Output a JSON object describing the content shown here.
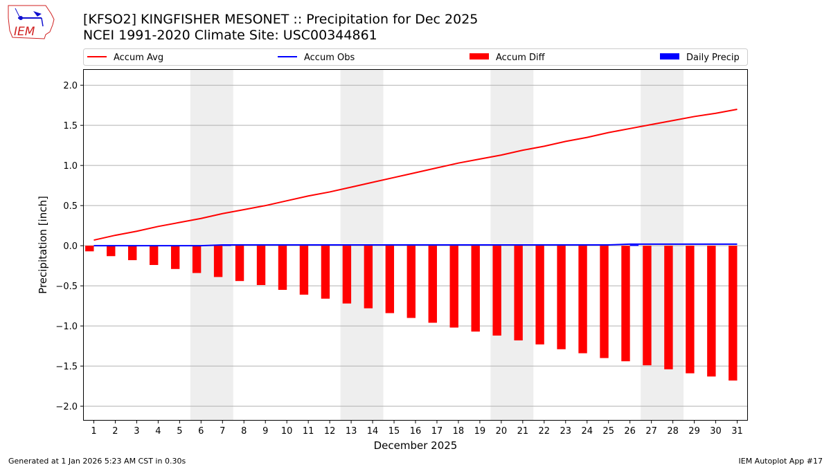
{
  "logo": {
    "text": "IEM",
    "colors": {
      "outline": "#d02020",
      "symbol": "#1010d0"
    }
  },
  "header": {
    "title": "[KFSO2] KINGFISHER MESONET :: Precipitation for Dec 2025",
    "subtitle": "NCEI 1991-2020 Climate Site: USC00344861"
  },
  "footer": {
    "left": "Generated at 1 Jan 2026 5:23 AM CST in 0.30s",
    "right": "IEM Autoplot App #17"
  },
  "chart_data": {
    "type": "bar",
    "xlabel": "December 2025",
    "ylabel": "Precipitation [inch]",
    "x": [
      1,
      2,
      3,
      4,
      5,
      6,
      7,
      8,
      9,
      10,
      11,
      12,
      13,
      14,
      15,
      16,
      17,
      18,
      19,
      20,
      21,
      22,
      23,
      24,
      25,
      26,
      27,
      28,
      29,
      30,
      31
    ],
    "xlim": [
      0.5,
      31.5
    ],
    "ylim": [
      -2.18,
      2.2
    ],
    "yticks": [
      -2.0,
      -1.5,
      -1.0,
      -0.5,
      0.0,
      0.5,
      1.0,
      1.5,
      2.0
    ],
    "ytick_labels": [
      "−2.0",
      "−1.5",
      "−1.0",
      "−0.5",
      "0.0",
      "0.5",
      "1.0",
      "1.5",
      "2.0"
    ],
    "grid": "horizontal",
    "legend_placement": "top, above plot",
    "weekend_shading": [
      [
        6,
        7
      ],
      [
        13,
        14
      ],
      [
        20,
        21
      ],
      [
        27,
        28
      ]
    ],
    "series": [
      {
        "name": "Accum Avg",
        "type": "line",
        "color": "#ff0000",
        "values": [
          0.07,
          0.13,
          0.18,
          0.24,
          0.29,
          0.34,
          0.4,
          0.45,
          0.5,
          0.56,
          0.62,
          0.67,
          0.73,
          0.79,
          0.85,
          0.91,
          0.97,
          1.03,
          1.08,
          1.13,
          1.19,
          1.24,
          1.3,
          1.35,
          1.41,
          1.46,
          1.51,
          1.56,
          1.61,
          1.65,
          1.7
        ]
      },
      {
        "name": "Accum Obs",
        "type": "line",
        "color": "#0000ff",
        "values": [
          0,
          0,
          0,
          0,
          0,
          0,
          0.01,
          0.01,
          0.01,
          0.01,
          0.01,
          0.01,
          0.01,
          0.01,
          0.01,
          0.01,
          0.01,
          0.01,
          0.01,
          0.01,
          0.01,
          0.01,
          0.01,
          0.01,
          0.01,
          0.02,
          0.02,
          0.02,
          0.02,
          0.02,
          0.02
        ]
      },
      {
        "name": "Accum Diff",
        "type": "bar",
        "color": "#ff0000",
        "values": [
          -0.07,
          -0.13,
          -0.18,
          -0.24,
          -0.29,
          -0.34,
          -0.39,
          -0.44,
          -0.49,
          -0.55,
          -0.61,
          -0.66,
          -0.72,
          -0.78,
          -0.84,
          -0.9,
          -0.96,
          -1.02,
          -1.07,
          -1.12,
          -1.18,
          -1.23,
          -1.29,
          -1.34,
          -1.4,
          -1.44,
          -1.49,
          -1.54,
          -1.59,
          -1.63,
          -1.68
        ]
      },
      {
        "name": "Daily Precip",
        "type": "bar",
        "color": "#0000ff",
        "values": [
          0,
          0,
          0,
          0,
          0,
          0,
          0.01,
          0,
          0,
          0,
          0,
          0,
          0,
          0,
          0,
          0,
          0,
          0,
          0,
          0,
          0,
          0,
          0,
          0,
          0,
          0.01,
          0,
          0,
          0,
          0,
          0
        ]
      }
    ]
  }
}
